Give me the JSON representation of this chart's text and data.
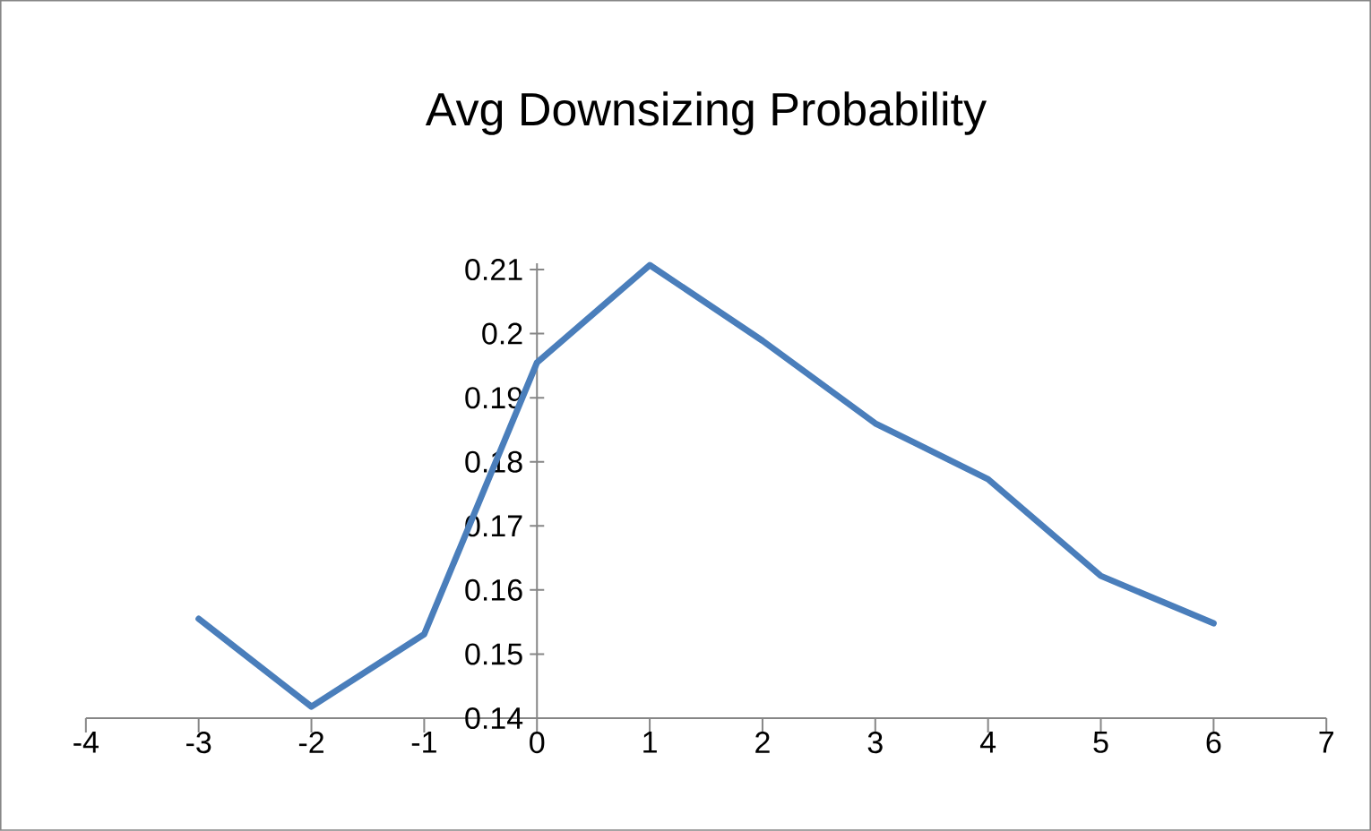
{
  "chart_data": {
    "type": "line",
    "title": "Avg Downsizing Probability",
    "x": [
      -3,
      -2,
      -1,
      0,
      1,
      2,
      3,
      4,
      5,
      6
    ],
    "series": [
      {
        "color": "#4a7ebb",
        "values": [
          0.1555,
          0.1418,
          0.1531,
          0.1955,
          0.2107,
          0.1989,
          0.186,
          0.1773,
          0.1622,
          0.1548
        ]
      }
    ],
    "xlim": [
      -4,
      7
    ],
    "xticks": [
      -4,
      -3,
      -2,
      -1,
      0,
      1,
      2,
      3,
      4,
      5,
      6,
      7
    ],
    "ylim": [
      0.14,
      0.211
    ],
    "yticks": [
      0.14,
      0.15,
      0.16,
      0.17,
      0.18,
      0.19,
      0.2,
      0.21
    ],
    "marker": "none",
    "line_style": "solid"
  }
}
